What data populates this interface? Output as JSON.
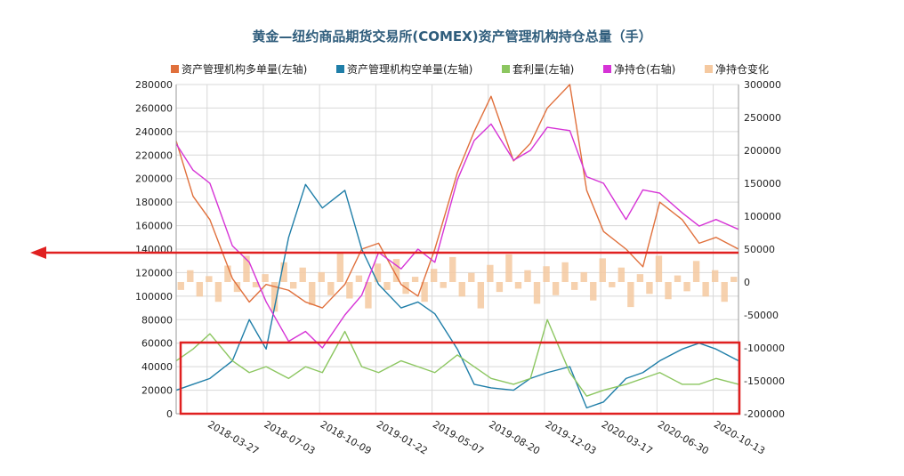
{
  "chart_data": {
    "type": "line",
    "title": "黄金—纽约商品期货交易所(COMEX)资产管理机构持仓总量（手）",
    "left_axis": {
      "min": 0,
      "max": 280000,
      "ticks": [
        0,
        20000,
        40000,
        60000,
        80000,
        100000,
        120000,
        140000,
        160000,
        180000,
        200000,
        220000,
        240000,
        260000,
        280000
      ]
    },
    "right_axis": {
      "min": -200000,
      "max": 300000,
      "ticks": [
        -200000,
        -150000,
        -100000,
        -50000,
        0,
        50000,
        100000,
        150000,
        200000,
        250000,
        300000
      ]
    },
    "x_tick_labels": [
      "2018-03-27",
      "2018-07-03",
      "2018-10-09",
      "2019-01-22",
      "2019-05-07",
      "2019-08-20",
      "2019-12-03",
      "2020-03-17",
      "2020-06-30",
      "2020-10-13"
    ],
    "grid": true,
    "legend_position": "top",
    "legend": [
      {
        "name": "资产管理机构多单量(左轴)",
        "color": "#e0703c"
      },
      {
        "name": "资产管理机构空单量(左轴)",
        "color": "#1f7ea8"
      },
      {
        "name": "套利量(左轴)",
        "color": "#8cc660"
      },
      {
        "name": "净持仓(右轴)",
        "color": "#d633d6"
      },
      {
        "name": "净持仓变化",
        "color": "#f5c9a0"
      }
    ],
    "series": [
      {
        "name": "资产管理机构多单量(左轴)",
        "axis": "left",
        "color": "#e0703c",
        "x": [
          0,
          0.3,
          0.6,
          1,
          1.3,
          1.6,
          2,
          2.3,
          2.6,
          3,
          3.3,
          3.6,
          4,
          4.3,
          4.6,
          5,
          5.3,
          5.6,
          6,
          6.3,
          6.6,
          7,
          7.3,
          7.6,
          8,
          8.3,
          8.6,
          9,
          9.3,
          9.6,
          10
        ],
        "y": [
          232000,
          185000,
          165000,
          115000,
          95000,
          110000,
          105000,
          95000,
          90000,
          110000,
          140000,
          145000,
          110000,
          100000,
          140000,
          205000,
          240000,
          270000,
          215000,
          230000,
          260000,
          280000,
          190000,
          155000,
          140000,
          125000,
          180000,
          165000,
          145000,
          150000,
          140000
        ]
      },
      {
        "name": "资产管理机构空单量(左轴)",
        "axis": "left",
        "color": "#1f7ea8",
        "x": [
          0,
          0.3,
          0.6,
          1,
          1.3,
          1.6,
          2,
          2.3,
          2.6,
          3,
          3.3,
          3.6,
          4,
          4.3,
          4.6,
          5,
          5.3,
          5.6,
          6,
          6.3,
          6.6,
          7,
          7.3,
          7.6,
          8,
          8.3,
          8.6,
          9,
          9.3,
          9.6,
          10
        ],
        "y": [
          20000,
          25000,
          30000,
          45000,
          80000,
          55000,
          150000,
          195000,
          175000,
          190000,
          140000,
          110000,
          90000,
          95000,
          85000,
          55000,
          25000,
          22000,
          20000,
          30000,
          35000,
          40000,
          5000,
          10000,
          30000,
          35000,
          45000,
          55000,
          60000,
          55000,
          45000
        ]
      },
      {
        "name": "套利量(左轴)",
        "axis": "left",
        "color": "#8cc660",
        "x": [
          0,
          0.3,
          0.6,
          1,
          1.3,
          1.6,
          2,
          2.3,
          2.6,
          3,
          3.3,
          3.6,
          4,
          4.3,
          4.6,
          5,
          5.3,
          5.6,
          6,
          6.3,
          6.6,
          7,
          7.3,
          7.6,
          8,
          8.3,
          8.6,
          9,
          9.3,
          9.6,
          10
        ],
        "y": [
          45000,
          55000,
          68000,
          45000,
          35000,
          40000,
          30000,
          40000,
          35000,
          70000,
          40000,
          35000,
          45000,
          40000,
          35000,
          50000,
          40000,
          30000,
          25000,
          30000,
          80000,
          35000,
          15000,
          20000,
          25000,
          30000,
          35000,
          25000,
          25000,
          30000,
          25000
        ]
      },
      {
        "name": "净持仓(右轴)",
        "axis": "right",
        "color": "#d633d6",
        "x": [
          0,
          0.3,
          0.6,
          1,
          1.3,
          1.6,
          2,
          2.3,
          2.6,
          3,
          3.3,
          3.6,
          4,
          4.3,
          4.6,
          5,
          5.3,
          5.6,
          6,
          6.3,
          6.6,
          7,
          7.3,
          7.6,
          8,
          8.3,
          8.6,
          9,
          9.3,
          9.6,
          10
        ],
        "y": [
          210000,
          170000,
          150000,
          55000,
          30000,
          -30000,
          -90000,
          -75000,
          -100000,
          -50000,
          -20000,
          45000,
          20000,
          50000,
          30000,
          155000,
          215000,
          240000,
          185000,
          200000,
          235000,
          230000,
          160000,
          150000,
          95000,
          140000,
          135000,
          105000,
          85000,
          95000,
          80000
        ]
      }
    ],
    "bar_series": {
      "name": "净持仓变化",
      "axis": "right",
      "color": "#f5c9a0",
      "values": [
        -12000,
        18000,
        -22000,
        9000,
        -30000,
        25000,
        -15000,
        40000,
        -8000,
        12000,
        -45000,
        30000,
        -10000,
        22000,
        -35000,
        15000,
        -20000,
        45000,
        -25000,
        10000,
        -40000,
        28000,
        -12000,
        35000,
        -18000,
        8000,
        -30000,
        20000,
        -9000,
        38000,
        -22000,
        14000,
        -40000,
        26000,
        -15000,
        42000,
        -10000,
        18000,
        -33000,
        24000,
        -20000,
        30000,
        -12000,
        15000,
        -28000,
        36000,
        -8000,
        22000,
        -38000,
        12000,
        -18000,
        40000,
        -26000,
        10000,
        -14000,
        32000,
        -22000,
        18000,
        -30000,
        8000
      ]
    }
  }
}
